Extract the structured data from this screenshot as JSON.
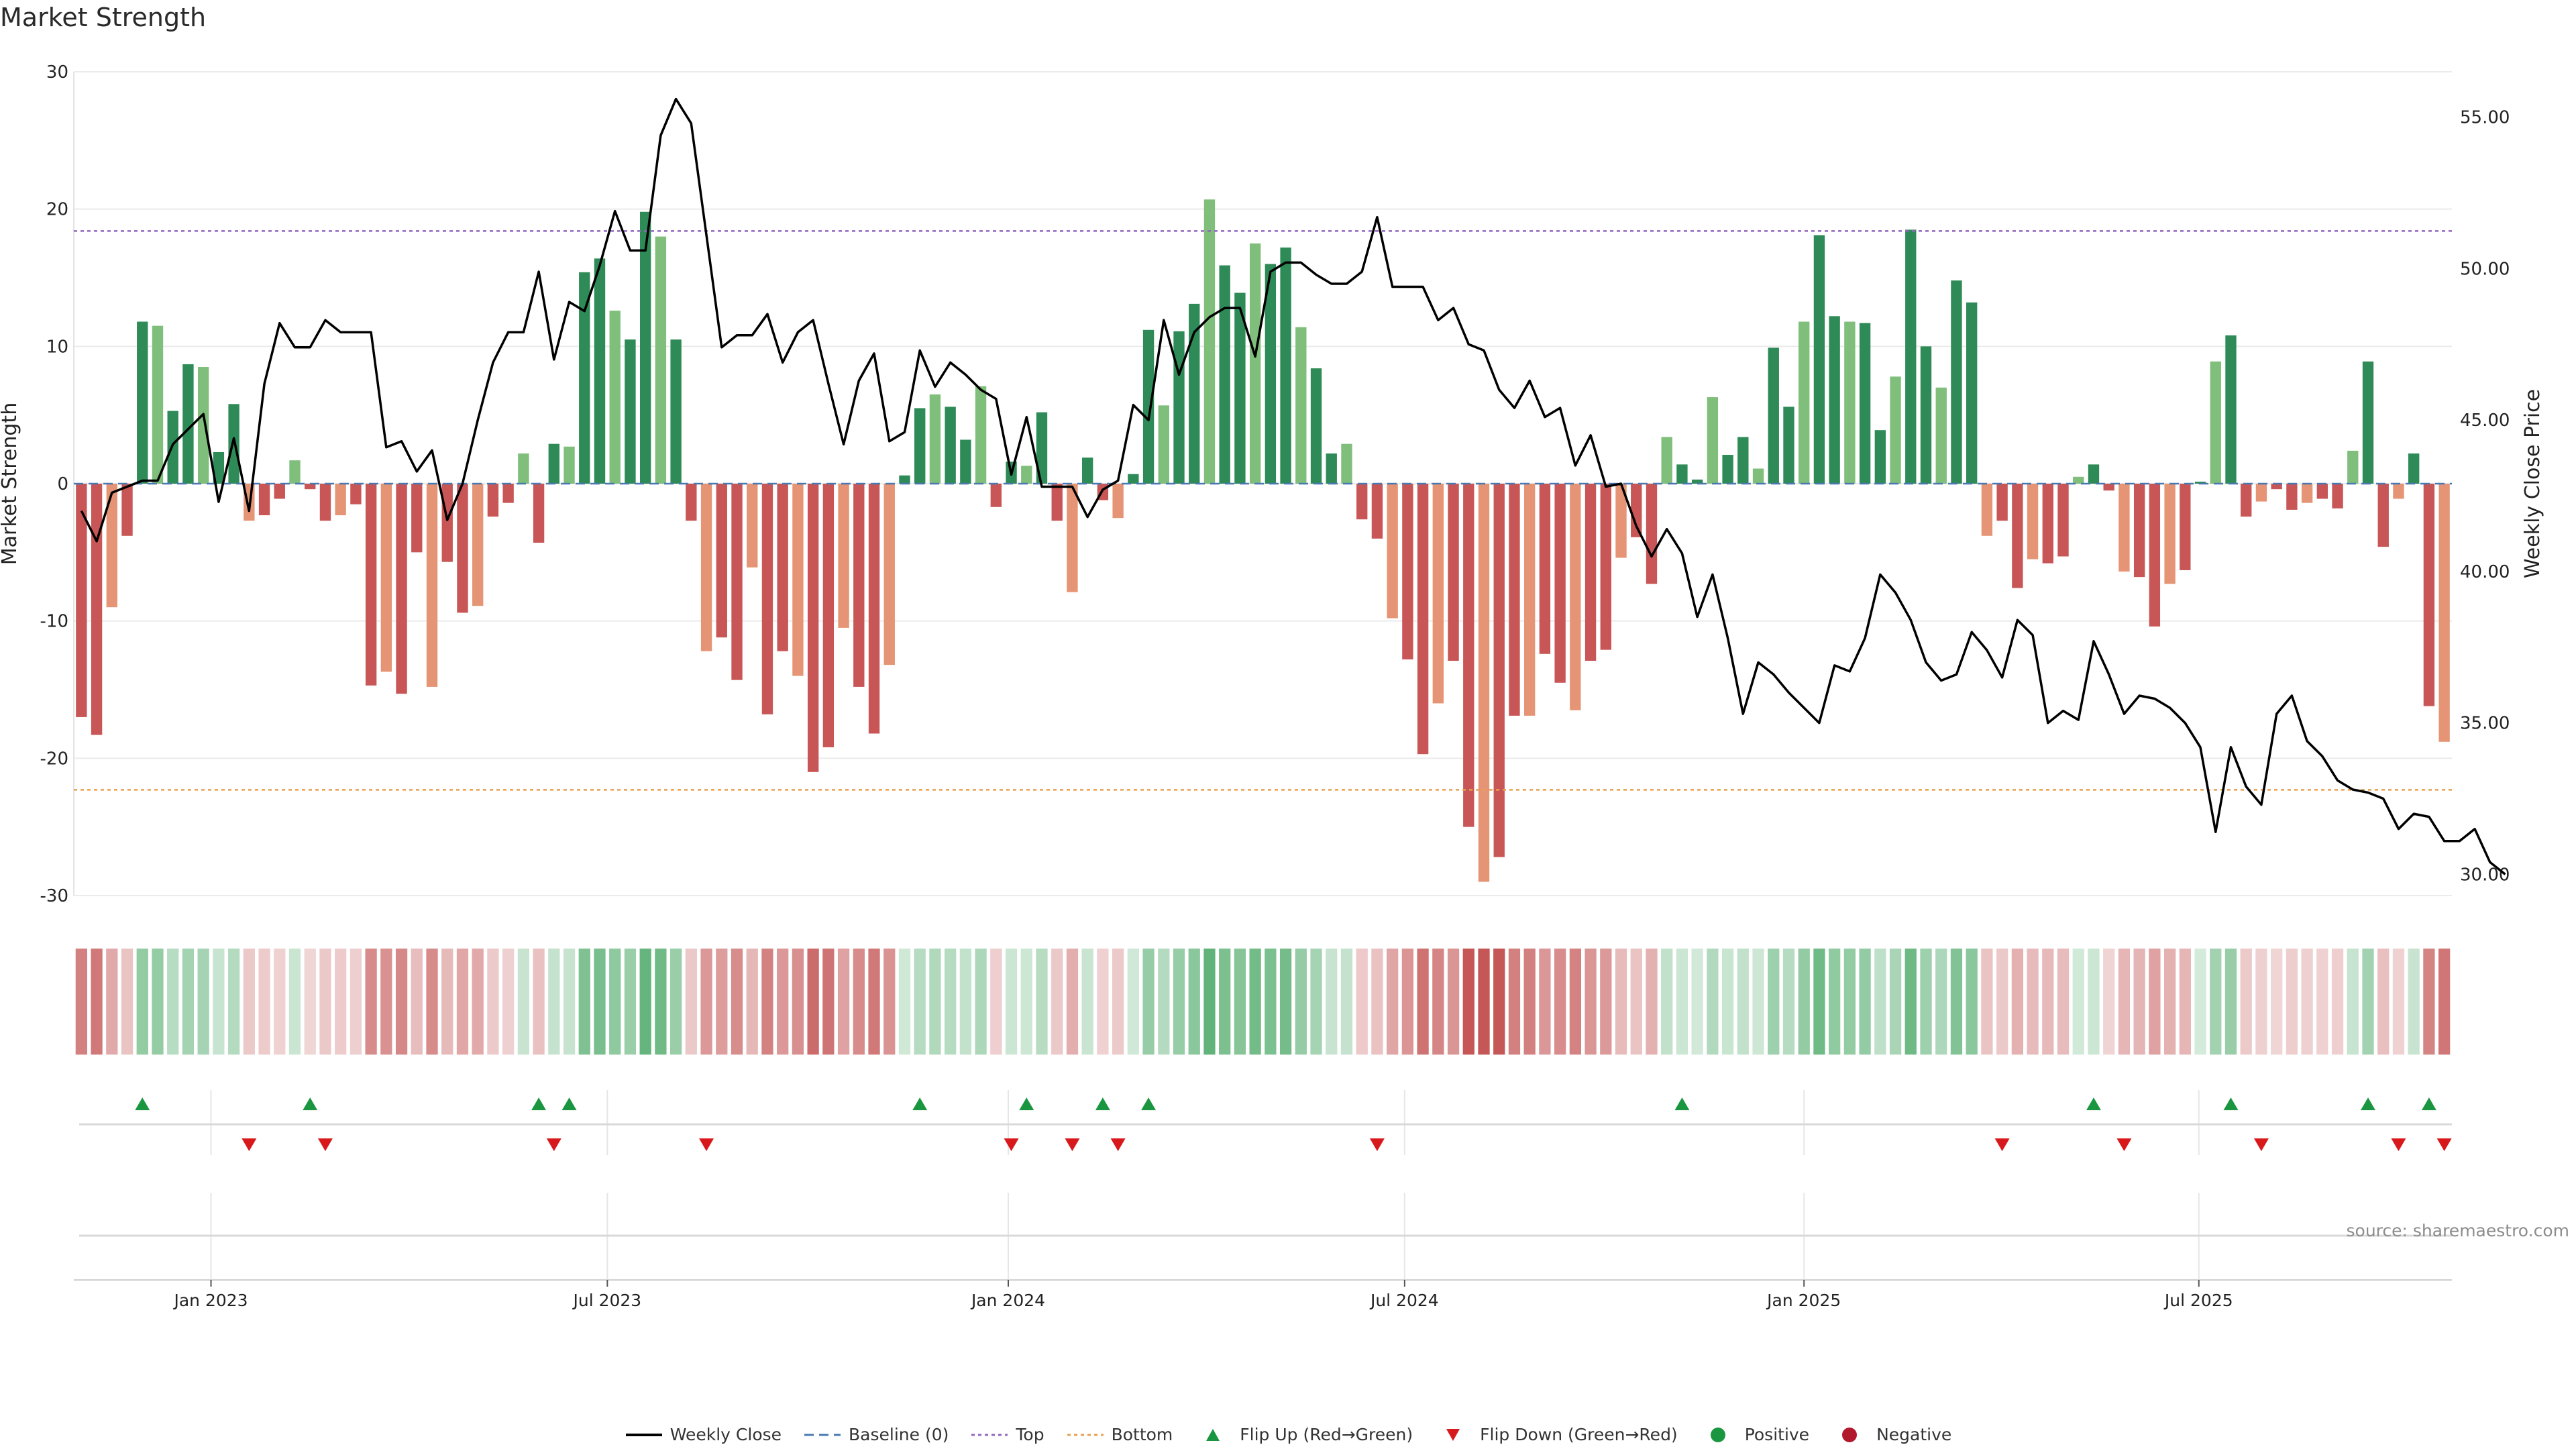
{
  "chart_data": {
    "type": "bar",
    "title": "Market Strength",
    "ylabel_left": "Market Strength",
    "ylabel_right": "Weekly Close Price",
    "ylim_left": [
      -30,
      30
    ],
    "ylim_right": [
      29.3,
      56.5
    ],
    "yticks_left": [
      30,
      20,
      10,
      0,
      -10,
      -20,
      -30
    ],
    "yticks_right": [
      "55.00",
      "50.00",
      "45.00",
      "40.00",
      "35.00",
      "30.00"
    ],
    "yticks_right_values": [
      55,
      50,
      45,
      40,
      35,
      30
    ],
    "x_ticks": [
      {
        "label": "Jan 2023",
        "week": 9
      },
      {
        "label": "Jul 2023",
        "week": 35
      },
      {
        "label": "Jan 2024",
        "week": 61.3
      },
      {
        "label": "Jul 2024",
        "week": 87.3
      },
      {
        "label": "Jan 2025",
        "week": 113.5
      },
      {
        "label": "Jul 2025",
        "week": 139.4
      }
    ],
    "top_line": 18.4,
    "bottom_line": -22.3,
    "baseline": 0,
    "strength": [
      -17,
      -18.3,
      -9,
      -3.8,
      11.8,
      11.5,
      5.3,
      8.7,
      8.5,
      2.3,
      5.8,
      -2.7,
      -2.3,
      -1.1,
      1.7,
      -0.4,
      -2.7,
      -2.3,
      -1.5,
      -14.7,
      -13.7,
      -15.3,
      -5,
      -14.8,
      -5.7,
      -9.4,
      -8.9,
      -2.4,
      -1.4,
      2.2,
      -4.3,
      2.9,
      2.7,
      15.4,
      16.4,
      12.6,
      10.5,
      19.8,
      18,
      10.5,
      -2.7,
      -12.2,
      -11.2,
      -14.3,
      -6.1,
      -16.8,
      -12.2,
      -14,
      -21,
      -19.2,
      -10.5,
      -14.8,
      -18.2,
      -13.2,
      0.6,
      5.5,
      6.5,
      5.6,
      3.2,
      7.1,
      -1.7,
      1.6,
      1.3,
      5.2,
      -2.7,
      -7.9,
      1.9,
      -1.2,
      -2.5,
      0.7,
      11.2,
      5.7,
      11.1,
      13.1,
      20.7,
      15.9,
      13.9,
      17.5,
      16,
      17.2,
      11.4,
      8.4,
      2.2,
      2.9,
      -2.6,
      -4,
      -9.8,
      -12.8,
      -19.7,
      -16,
      -12.9,
      -25,
      -29,
      -27.2,
      -16.9,
      -16.9,
      -12.4,
      -14.5,
      -16.5,
      -12.9,
      -12.1,
      -5.4,
      -3.9,
      -7.3,
      3.4,
      1.4,
      0.3,
      6.3,
      2.1,
      3.4,
      1.1,
      9.9,
      5.6,
      11.8,
      18.1,
      12.2,
      11.8,
      11.7,
      3.9,
      7.8,
      18.5,
      10,
      7,
      14.8,
      13.2,
      -3.8,
      -2.7,
      -7.6,
      -5.5,
      -5.8,
      -5.3,
      0.5,
      1.4,
      -0.5,
      -6.4,
      -6.8,
      -10.4,
      -7.3,
      -6.3,
      0,
      8.9,
      10.8,
      -2.4,
      -1.3,
      -0.4,
      -1.9,
      -1.4,
      -1.1,
      -1.8,
      2.4,
      8.9,
      -4.6,
      -1.1,
      2.2,
      -16.2,
      -18.8
    ],
    "price": [
      42.0,
      41.0,
      42.6,
      42.8,
      43.0,
      43.0,
      44.2,
      44.7,
      45.2,
      42.3,
      44.4,
      42.0,
      46.2,
      48.2,
      47.4,
      47.4,
      48.3,
      47.9,
      47.9,
      47.9,
      44.1,
      44.3,
      43.3,
      44.0,
      41.7,
      42.9,
      45.0,
      46.9,
      47.9,
      47.9,
      49.9,
      47.0,
      48.9,
      48.6,
      50.1,
      51.9,
      50.6,
      50.6,
      54.4,
      55.6,
      54.8,
      51.1,
      47.4,
      47.8,
      47.8,
      48.5,
      46.9,
      47.9,
      48.3,
      46.2,
      44.2,
      46.3,
      47.2,
      44.3,
      44.6,
      47.3,
      46.1,
      46.9,
      46.5,
      46.0,
      45.7,
      43.2,
      45.1,
      42.8,
      42.8,
      42.8,
      41.8,
      42.7,
      43.0,
      45.5,
      45.0,
      48.3,
      46.5,
      47.9,
      48.4,
      48.7,
      48.7,
      47.1,
      49.9,
      50.2,
      50.2,
      49.8,
      49.5,
      49.5,
      49.9,
      51.7,
      49.4,
      49.4,
      49.4,
      48.3,
      48.7,
      47.5,
      47.3,
      46.0,
      45.4,
      46.3,
      45.1,
      45.4,
      43.5,
      44.5,
      42.8,
      42.9,
      41.5,
      40.5,
      41.4,
      40.6,
      38.5,
      39.9,
      37.8,
      35.3,
      37.0,
      36.6,
      36.0,
      35.5,
      35.0,
      36.9,
      36.7,
      37.8,
      39.9,
      39.3,
      38.4,
      37.0,
      36.4,
      36.6,
      38.0,
      37.4,
      36.5,
      38.4,
      37.9,
      35.0,
      35.4,
      35.1,
      37.7,
      36.6,
      35.3,
      35.9,
      35.8,
      35.5,
      35.0,
      34.2,
      31.4,
      34.2,
      32.9,
      32.3,
      35.3,
      35.9,
      34.4,
      33.9,
      33.1,
      32.8,
      32.7,
      32.5,
      31.5,
      32.0,
      31.9,
      31.1,
      31.1,
      31.5,
      30.4,
      30.0
    ],
    "flip_up_weeks": [
      4,
      15,
      30,
      32,
      55,
      62,
      67,
      70,
      105,
      132,
      141,
      150,
      154
    ],
    "flip_down_weeks": [
      11,
      16,
      31,
      41,
      61,
      65,
      68,
      85,
      126,
      134,
      143,
      152,
      155
    ],
    "legend": [
      {
        "label": "Weekly Close",
        "kind": "line",
        "color": "#000000"
      },
      {
        "label": "Baseline (0)",
        "kind": "dash",
        "color": "#4a78b0"
      },
      {
        "label": "Top",
        "kind": "dot",
        "color": "#9467bd"
      },
      {
        "label": "Bottom",
        "kind": "dot",
        "color": "#e8a050"
      },
      {
        "label": "Flip Up (Red→Green)",
        "kind": "tri-up",
        "color": "#1a9640"
      },
      {
        "label": "Flip Down (Green→Red)",
        "kind": "tri-down",
        "color": "#d7191c"
      },
      {
        "label": "Positive",
        "kind": "circle",
        "color": "#1a9640"
      },
      {
        "label": "Negative",
        "kind": "circle",
        "color": "#b2182b"
      }
    ]
  },
  "source_text": "source: sharemaestro.com"
}
